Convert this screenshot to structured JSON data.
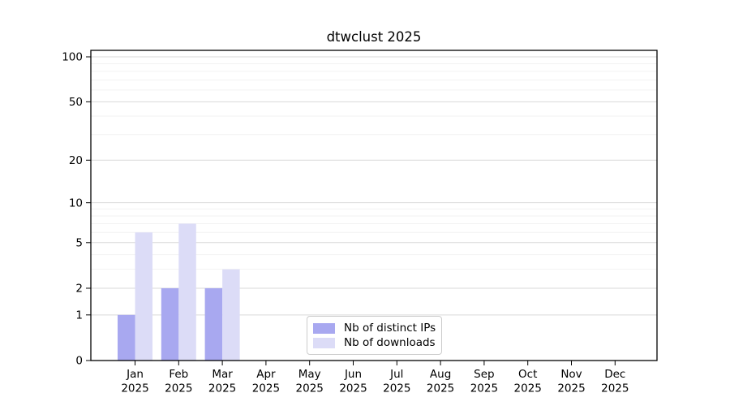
{
  "title": "dtwclust 2025",
  "colors": {
    "background": "#ffffff",
    "spine": "#000000",
    "tick": "#000000",
    "grid_major": "#d9d9d9",
    "grid_minor": "#f2f2f2",
    "legend_border": "#cccccc",
    "ips_bar": "#a8a8f0",
    "downloads_bar": "#dcdcf7"
  },
  "legend": {
    "items": [
      {
        "label": "Nb of distinct IPs",
        "color": "#a8a8f0"
      },
      {
        "label": "Nb of downloads",
        "color": "#dcdcf7"
      }
    ]
  },
  "chart_data": {
    "type": "bar",
    "title": "dtwclust 2025",
    "categories": [
      "Jan 2025",
      "Feb 2025",
      "Mar 2025",
      "Apr 2025",
      "May 2025",
      "Jun 2025",
      "Jul 2025",
      "Aug 2025",
      "Sep 2025",
      "Oct 2025",
      "Nov 2025",
      "Dec 2025"
    ],
    "series": [
      {
        "name": "Nb of distinct IPs",
        "color": "#a8a8f0",
        "values": [
          1,
          2,
          2,
          0,
          0,
          0,
          0,
          0,
          0,
          0,
          0,
          0
        ]
      },
      {
        "name": "Nb of downloads",
        "color": "#dcdcf7",
        "values": [
          6,
          7,
          3,
          0,
          0,
          0,
          0,
          0,
          0,
          0,
          0,
          0
        ]
      }
    ],
    "xlabel": "",
    "ylabel": "",
    "yscale": "log1p",
    "yticks": [
      0,
      1,
      2,
      5,
      10,
      20,
      50,
      100
    ],
    "minor_gridlines": [
      3,
      4,
      6,
      7,
      8,
      9,
      30,
      40,
      60,
      70,
      80,
      90
    ],
    "ylim": [
      0,
      111
    ],
    "grid": "horizontal",
    "legend_position": "inside bottom-center"
  }
}
